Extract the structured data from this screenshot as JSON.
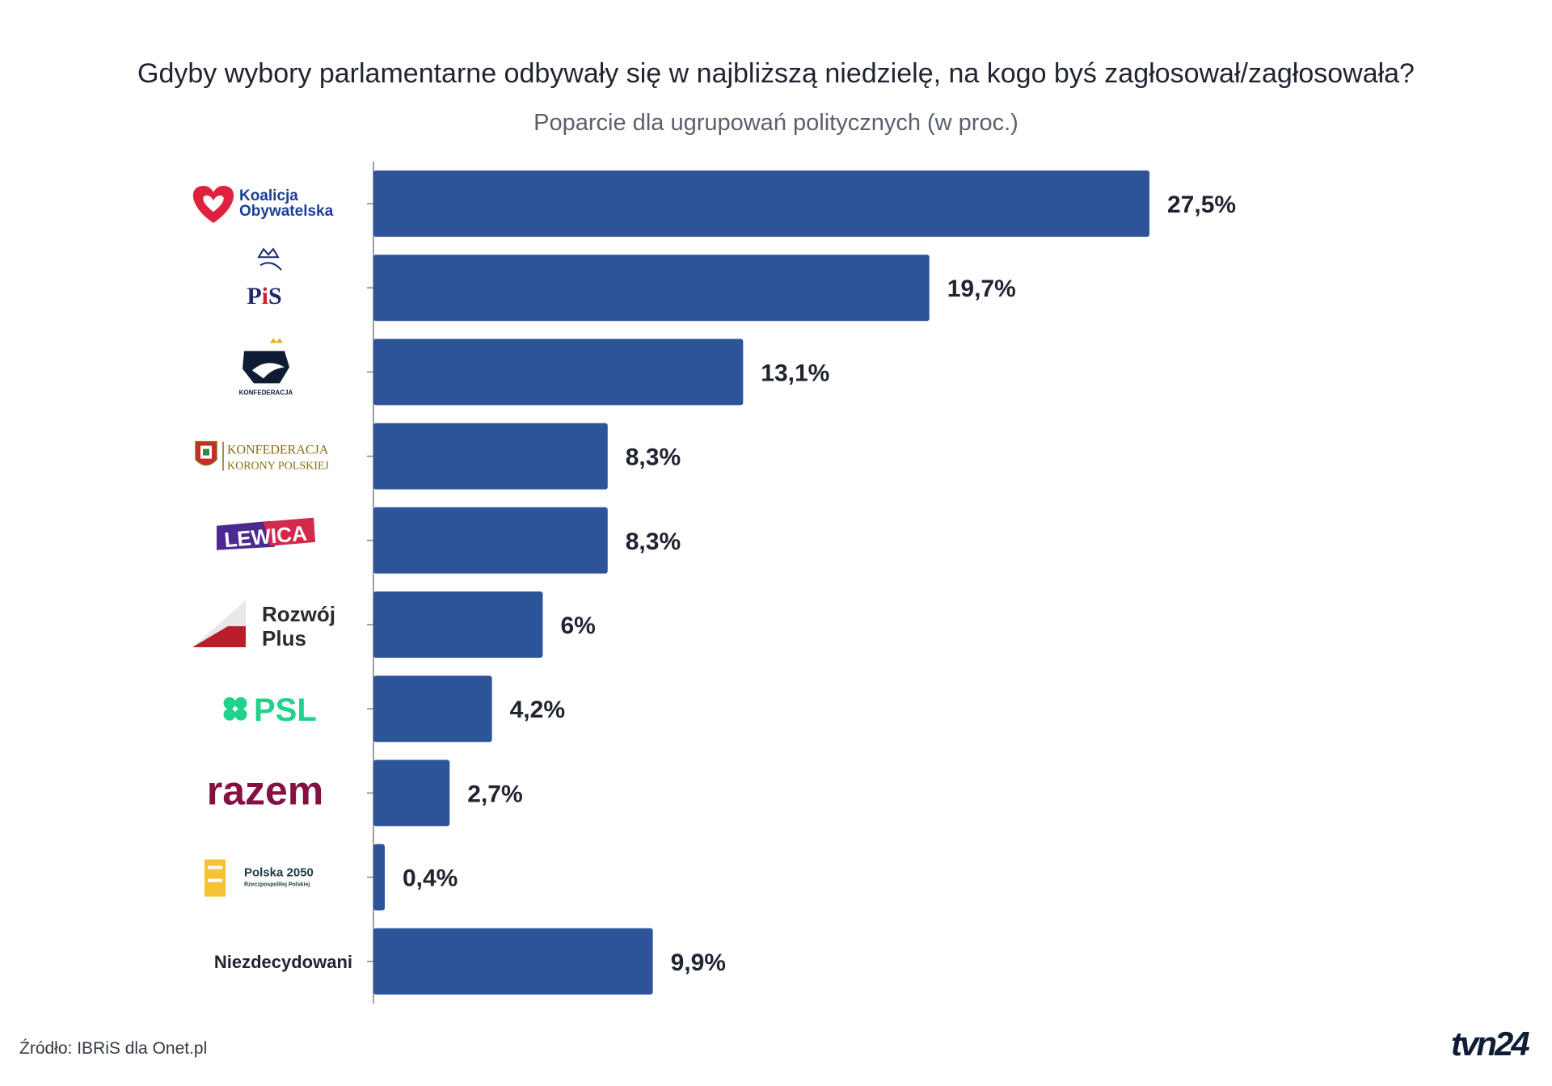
{
  "header": {
    "title": "Gdyby wybory parlamentarne odbywały się w najbliższą niedzielę, na kogo byś zagłosował/zagłosowała?",
    "subtitle": "Poparcie dla ugrupowań politycznych (w proc.)"
  },
  "footer": {
    "source": "Źródło: IBRiS dla Onet.pl",
    "brand": "tvn24"
  },
  "colors": {
    "bar": "#2d5398",
    "text": "#1f2430"
  },
  "chart_data": {
    "type": "bar",
    "orientation": "horizontal",
    "categories": [
      "Koalicja Obywatelska",
      "PiS",
      "Konfederacja",
      "Konfederacja Korony Polskiej",
      "Lewica",
      "Rozwój Plus",
      "PSL",
      "razem",
      "Polska 2050",
      "Niezdecydowani"
    ],
    "values": [
      27.5,
      19.7,
      13.1,
      8.3,
      8.3,
      6,
      4.2,
      2.7,
      0.4,
      9.9
    ],
    "value_labels": [
      "27,5%",
      "19,7%",
      "13,1%",
      "8,3%",
      "8,3%",
      "6%",
      "4,2%",
      "2,7%",
      "0,4%",
      "9,9%"
    ],
    "logos": [
      {
        "icon": "heart-logo",
        "lines": [
          "Koalicja",
          "Obywatelska"
        ]
      },
      {
        "icon": "crown-logo",
        "lines": [
          "PiS"
        ]
      },
      {
        "icon": "eagle-logo",
        "lines": [
          "KONFEDERACJA"
        ]
      },
      {
        "icon": "coat-of-arms-logo",
        "lines": [
          "KONFEDERACJA",
          "KORONY POLSKIEJ"
        ]
      },
      {
        "icon": "banner-logo",
        "lines": [
          "LEWICA"
        ]
      },
      {
        "icon": "folded-corner-logo",
        "lines": [
          "Rozwój",
          "Plus"
        ]
      },
      {
        "icon": "clover-logo",
        "lines": [
          "PSL"
        ]
      },
      {
        "icon": "wordmark-logo",
        "lines": [
          "razem"
        ]
      },
      {
        "icon": "2050-logo",
        "lines": [
          "Polska 2050",
          "Rzeczpospolitej Polskiej"
        ]
      },
      {
        "icon": "",
        "lines": [
          "Niezdecydowani"
        ]
      }
    ],
    "xlim": [
      0,
      30
    ],
    "grid": false,
    "legend": "none"
  }
}
